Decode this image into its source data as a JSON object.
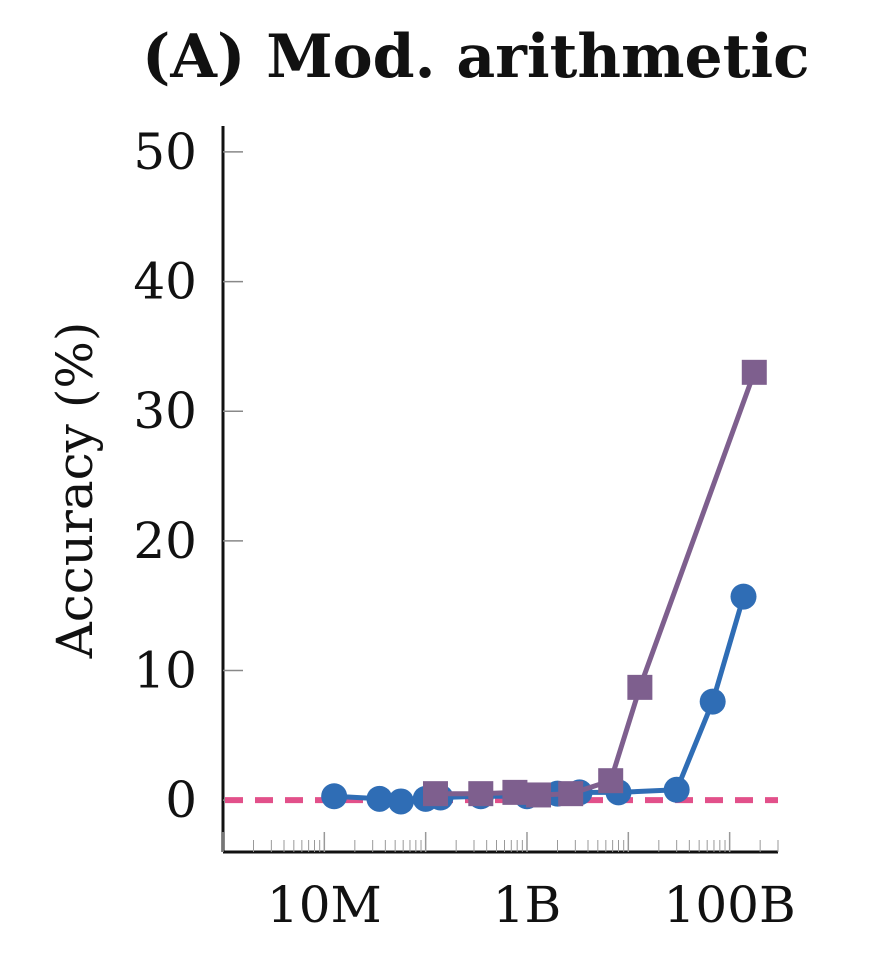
{
  "chart_data": {
    "type": "line",
    "title": "(A) Mod. arithmetic",
    "xlabel": "",
    "ylabel": "Accuracy (%)",
    "x_scale": "log",
    "xlim": [
      1000000.0,
      300000000000.0
    ],
    "ylim": [
      -4,
      52
    ],
    "x_ticks": [
      {
        "value": 10000000.0,
        "label": "10M"
      },
      {
        "value": 1000000000.0,
        "label": "1B"
      },
      {
        "value": 100000000000.0,
        "label": "100B"
      }
    ],
    "y_ticks": [
      {
        "value": 0,
        "label": "0"
      },
      {
        "value": 10,
        "label": "10"
      },
      {
        "value": 20,
        "label": "20"
      },
      {
        "value": 30,
        "label": "30"
      },
      {
        "value": 40,
        "label": "40"
      },
      {
        "value": 50,
        "label": "50"
      }
    ],
    "series": [
      {
        "color": "#2f6db5",
        "marker": "circle",
        "points": [
          {
            "x": 12500000.0,
            "y": 0.3
          },
          {
            "x": 35000000.0,
            "y": 0.1
          },
          {
            "x": 57000000.0,
            "y": -0.1
          },
          {
            "x": 100000000.0,
            "y": 0.1
          },
          {
            "x": 140000000.0,
            "y": 0.2
          },
          {
            "x": 350000000.0,
            "y": 0.3
          },
          {
            "x": 1000000000.0,
            "y": 0.3
          },
          {
            "x": 2000000000.0,
            "y": 0.5
          },
          {
            "x": 3300000000.0,
            "y": 0.6
          },
          {
            "x": 8000000000.0,
            "y": 0.6
          },
          {
            "x": 30000000000.0,
            "y": 0.8
          },
          {
            "x": 68000000000.0,
            "y": 7.6
          },
          {
            "x": 137000000000.0,
            "y": 15.7
          }
        ]
      },
      {
        "color": "#7e5f8e",
        "marker": "square",
        "points": [
          {
            "x": 125000000.0,
            "y": 0.5
          },
          {
            "x": 350000000.0,
            "y": 0.5
          },
          {
            "x": 760000000.0,
            "y": 0.6
          },
          {
            "x": 1300000000.0,
            "y": 0.4
          },
          {
            "x": 2700000000.0,
            "y": 0.5
          },
          {
            "x": 6700000000.0,
            "y": 1.5
          },
          {
            "x": 13000000000.0,
            "y": 8.7
          },
          {
            "x": 175000000000.0,
            "y": 33.0
          }
        ]
      }
    ],
    "baseline": {
      "y": 0,
      "color": "#e2508a",
      "style": "dashed"
    }
  }
}
